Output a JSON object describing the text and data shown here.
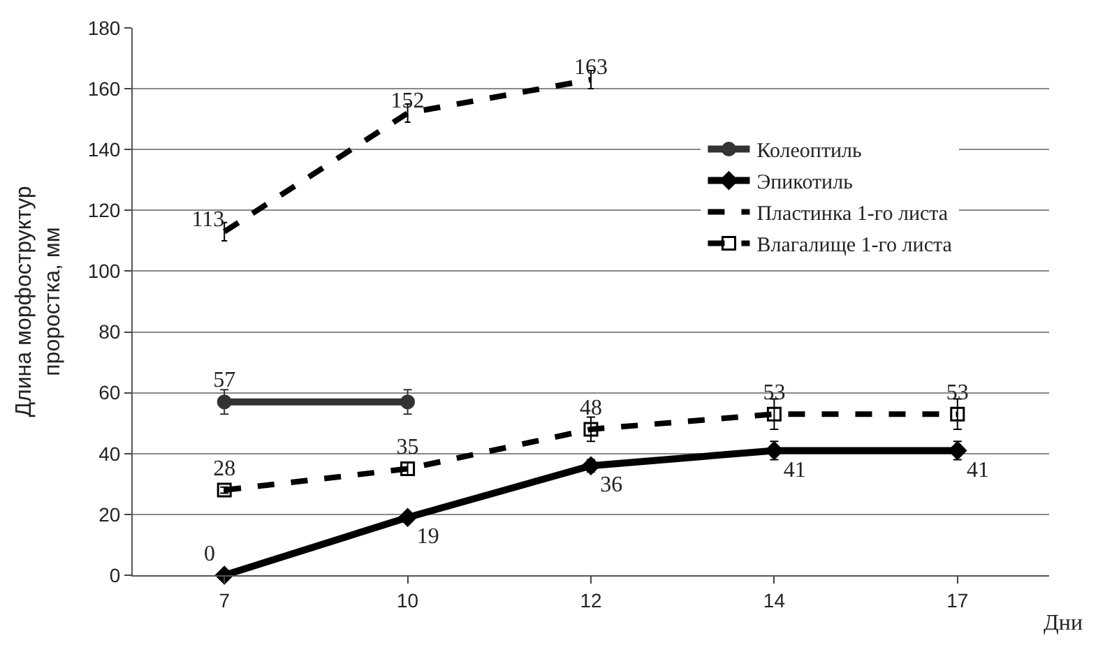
{
  "chart_data": {
    "type": "line",
    "xlabel": "Дни",
    "ylabel": "Длина морфоструктур\nпроростка, мм",
    "categories": [
      "7",
      "10",
      "12",
      "14",
      "17"
    ],
    "ylim": [
      0,
      180
    ],
    "yticks": [
      0,
      20,
      40,
      60,
      80,
      100,
      120,
      140,
      160,
      180
    ],
    "grid": "y",
    "legend": "right",
    "series": [
      {
        "name": "Колеоптиль",
        "color": "#333333",
        "marker": "circle",
        "line_style": "solid",
        "values": [
          57,
          57,
          null,
          null,
          null
        ],
        "errors": [
          4,
          4,
          null,
          null,
          null
        ],
        "value_labels": [
          "57",
          null,
          null,
          null,
          null
        ]
      },
      {
        "name": "Эпикотиль",
        "color": "#000000",
        "marker": "diamond",
        "line_style": "solid",
        "values": [
          0,
          19,
          36,
          41,
          41
        ],
        "errors": [
          null,
          null,
          2,
          3,
          3
        ],
        "value_labels": [
          "0",
          "19",
          "36",
          "41",
          "41"
        ]
      },
      {
        "name": "Пластинка 1-го листа",
        "color": "#000000",
        "marker": "none",
        "line_style": "dashed",
        "values": [
          113,
          152,
          163,
          null,
          null
        ],
        "errors": [
          3,
          3,
          3,
          null,
          null
        ],
        "value_labels": [
          "113",
          "152",
          "163",
          null,
          null
        ]
      },
      {
        "name": "Влагалище 1-го листа",
        "color": "#000000",
        "marker": "square",
        "line_style": "dashed",
        "values": [
          28,
          35,
          48,
          53,
          53
        ],
        "errors": [
          1,
          2,
          4,
          5,
          5
        ],
        "value_labels": [
          "28",
          "35",
          "48",
          "53",
          "53"
        ]
      }
    ]
  }
}
